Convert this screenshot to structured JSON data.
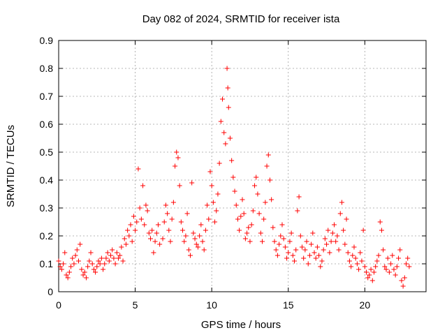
{
  "chart_data": {
    "type": "scatter",
    "title": "Day 082 of 2024, SRMTID for receiver ista",
    "xlabel": "GPS time / hours",
    "ylabel": "SRMTID / TECUs",
    "xlim": [
      0,
      24
    ],
    "ylim": [
      0,
      0.9
    ],
    "xticks": [
      0,
      5,
      10,
      15,
      20
    ],
    "yticks": [
      0,
      0.1,
      0.2,
      0.3,
      0.4,
      0.5,
      0.6,
      0.7,
      0.8,
      0.9
    ],
    "xtick_labels": [
      "0",
      "5",
      "10",
      "15",
      "20"
    ],
    "ytick_labels": [
      "0",
      "0.1",
      "0.2",
      "0.3",
      "0.4",
      "0.5",
      "0.6",
      "0.7",
      "0.8",
      "0.9"
    ],
    "grid": true,
    "marker": "+",
    "color": "#ff0000",
    "series": [
      {
        "name": "SRMTID",
        "points": [
          [
            0.0,
            0.11
          ],
          [
            0.1,
            0.09
          ],
          [
            0.2,
            0.08
          ],
          [
            0.3,
            0.1
          ],
          [
            0.4,
            0.14
          ],
          [
            0.5,
            0.06
          ],
          [
            0.6,
            0.05
          ],
          [
            0.7,
            0.07
          ],
          [
            0.8,
            0.09
          ],
          [
            0.9,
            0.12
          ],
          [
            1.0,
            0.1
          ],
          [
            1.1,
            0.13
          ],
          [
            1.2,
            0.15
          ],
          [
            1.3,
            0.11
          ],
          [
            1.4,
            0.17
          ],
          [
            1.5,
            0.08
          ],
          [
            1.6,
            0.06
          ],
          [
            1.7,
            0.07
          ],
          [
            1.8,
            0.05
          ],
          [
            1.9,
            0.09
          ],
          [
            2.0,
            0.11
          ],
          [
            2.1,
            0.14
          ],
          [
            2.2,
            0.1
          ],
          [
            2.3,
            0.08
          ],
          [
            2.4,
            0.07
          ],
          [
            2.5,
            0.09
          ],
          [
            2.6,
            0.11
          ],
          [
            2.7,
            0.1
          ],
          [
            2.8,
            0.12
          ],
          [
            2.9,
            0.08
          ],
          [
            3.0,
            0.1
          ],
          [
            3.1,
            0.12
          ],
          [
            3.2,
            0.14
          ],
          [
            3.3,
            0.11
          ],
          [
            3.4,
            0.13
          ],
          [
            3.5,
            0.15
          ],
          [
            3.6,
            0.12
          ],
          [
            3.7,
            0.1
          ],
          [
            3.8,
            0.14
          ],
          [
            3.9,
            0.12
          ],
          [
            4.0,
            0.13
          ],
          [
            4.1,
            0.16
          ],
          [
            4.2,
            0.11
          ],
          [
            4.3,
            0.19
          ],
          [
            4.4,
            0.17
          ],
          [
            4.5,
            0.22
          ],
          [
            4.6,
            0.2
          ],
          [
            4.7,
            0.24
          ],
          [
            4.8,
            0.18
          ],
          [
            4.9,
            0.27
          ],
          [
            5.0,
            0.22
          ],
          [
            5.1,
            0.25
          ],
          [
            5.2,
            0.44
          ],
          [
            5.3,
            0.3
          ],
          [
            5.4,
            0.26
          ],
          [
            5.5,
            0.38
          ],
          [
            5.6,
            0.24
          ],
          [
            5.7,
            0.31
          ],
          [
            5.8,
            0.29
          ],
          [
            5.9,
            0.21
          ],
          [
            6.0,
            0.19
          ],
          [
            6.1,
            0.22
          ],
          [
            6.2,
            0.14
          ],
          [
            6.3,
            0.18
          ],
          [
            6.4,
            0.21
          ],
          [
            6.5,
            0.24
          ],
          [
            6.6,
            0.17
          ],
          [
            6.8,
            0.19
          ],
          [
            6.9,
            0.25
          ],
          [
            7.0,
            0.31
          ],
          [
            7.1,
            0.28
          ],
          [
            7.2,
            0.22
          ],
          [
            7.3,
            0.18
          ],
          [
            7.4,
            0.26
          ],
          [
            7.5,
            0.32
          ],
          [
            7.6,
            0.45
          ],
          [
            7.7,
            0.5
          ],
          [
            7.8,
            0.48
          ],
          [
            7.9,
            0.38
          ],
          [
            8.0,
            0.25
          ],
          [
            8.1,
            0.22
          ],
          [
            8.2,
            0.18
          ],
          [
            8.3,
            0.2
          ],
          [
            8.4,
            0.28
          ],
          [
            8.5,
            0.15
          ],
          [
            8.6,
            0.13
          ],
          [
            8.7,
            0.39
          ],
          [
            8.8,
            0.21
          ],
          [
            8.9,
            0.19
          ],
          [
            9.0,
            0.17
          ],
          [
            9.1,
            0.16
          ],
          [
            9.2,
            0.2
          ],
          [
            9.3,
            0.24
          ],
          [
            9.4,
            0.18
          ],
          [
            9.5,
            0.15
          ],
          [
            9.6,
            0.22
          ],
          [
            9.7,
            0.31
          ],
          [
            9.8,
            0.26
          ],
          [
            9.9,
            0.43
          ],
          [
            10.0,
            0.38
          ],
          [
            10.1,
            0.32
          ],
          [
            10.2,
            0.25
          ],
          [
            10.3,
            0.29
          ],
          [
            10.4,
            0.35
          ],
          [
            10.5,
            0.46
          ],
          [
            10.6,
            0.61
          ],
          [
            10.7,
            0.69
          ],
          [
            10.8,
            0.57
          ],
          [
            10.9,
            0.53
          ],
          [
            11.0,
            0.8
          ],
          [
            11.05,
            0.73
          ],
          [
            11.1,
            0.66
          ],
          [
            11.2,
            0.55
          ],
          [
            11.3,
            0.47
          ],
          [
            11.4,
            0.41
          ],
          [
            11.5,
            0.36
          ],
          [
            11.6,
            0.31
          ],
          [
            11.7,
            0.26
          ],
          [
            11.8,
            0.22
          ],
          [
            11.9,
            0.27
          ],
          [
            12.0,
            0.33
          ],
          [
            12.1,
            0.28
          ],
          [
            12.2,
            0.19
          ],
          [
            12.3,
            0.21
          ],
          [
            12.4,
            0.23
          ],
          [
            12.5,
            0.18
          ],
          [
            12.6,
            0.24
          ],
          [
            12.7,
            0.29
          ],
          [
            12.8,
            0.38
          ],
          [
            12.9,
            0.41
          ],
          [
            13.0,
            0.35
          ],
          [
            13.1,
            0.28
          ],
          [
            13.2,
            0.21
          ],
          [
            13.3,
            0.18
          ],
          [
            13.4,
            0.26
          ],
          [
            13.5,
            0.32
          ],
          [
            13.6,
            0.45
          ],
          [
            13.7,
            0.49
          ],
          [
            13.8,
            0.4
          ],
          [
            13.9,
            0.33
          ],
          [
            14.0,
            0.23
          ],
          [
            14.1,
            0.18
          ],
          [
            14.2,
            0.15
          ],
          [
            14.3,
            0.13
          ],
          [
            14.4,
            0.17
          ],
          [
            14.5,
            0.2
          ],
          [
            14.6,
            0.24
          ],
          [
            14.7,
            0.19
          ],
          [
            14.8,
            0.16
          ],
          [
            14.9,
            0.12
          ],
          [
            15.0,
            0.14
          ],
          [
            15.1,
            0.18
          ],
          [
            15.2,
            0.21
          ],
          [
            15.3,
            0.13
          ],
          [
            15.4,
            0.11
          ],
          [
            15.5,
            0.15
          ],
          [
            15.6,
            0.29
          ],
          [
            15.7,
            0.34
          ],
          [
            15.8,
            0.2
          ],
          [
            15.9,
            0.16
          ],
          [
            16.0,
            0.12
          ],
          [
            16.1,
            0.15
          ],
          [
            16.2,
            0.18
          ],
          [
            16.3,
            0.1
          ],
          [
            16.4,
            0.13
          ],
          [
            16.5,
            0.17
          ],
          [
            16.6,
            0.21
          ],
          [
            16.7,
            0.14
          ],
          [
            16.8,
            0.12
          ],
          [
            16.9,
            0.16
          ],
          [
            17.0,
            0.13
          ],
          [
            17.1,
            0.09
          ],
          [
            17.2,
            0.11
          ],
          [
            17.3,
            0.15
          ],
          [
            17.4,
            0.19
          ],
          [
            17.5,
            0.17
          ],
          [
            17.6,
            0.22
          ],
          [
            17.7,
            0.14
          ],
          [
            17.8,
            0.18
          ],
          [
            17.9,
            0.21
          ],
          [
            18.0,
            0.24
          ],
          [
            18.1,
            0.18
          ],
          [
            18.2,
            0.2
          ],
          [
            18.3,
            0.15
          ],
          [
            18.4,
            0.28
          ],
          [
            18.5,
            0.32
          ],
          [
            18.6,
            0.22
          ],
          [
            18.7,
            0.17
          ],
          [
            18.8,
            0.26
          ],
          [
            18.9,
            0.14
          ],
          [
            19.0,
            0.11
          ],
          [
            19.1,
            0.09
          ],
          [
            19.2,
            0.13
          ],
          [
            19.3,
            0.16
          ],
          [
            19.4,
            0.12
          ],
          [
            19.5,
            0.1
          ],
          [
            19.6,
            0.08
          ],
          [
            19.7,
            0.14
          ],
          [
            19.8,
            0.11
          ],
          [
            19.9,
            0.22
          ],
          [
            20.0,
            0.09
          ],
          [
            20.1,
            0.07
          ],
          [
            20.2,
            0.05
          ],
          [
            20.3,
            0.06
          ],
          [
            20.4,
            0.08
          ],
          [
            20.5,
            0.04
          ],
          [
            20.6,
            0.07
          ],
          [
            20.7,
            0.09
          ],
          [
            20.8,
            0.11
          ],
          [
            20.9,
            0.13
          ],
          [
            21.0,
            0.25
          ],
          [
            21.1,
            0.22
          ],
          [
            21.2,
            0.15
          ],
          [
            21.3,
            0.09
          ],
          [
            21.4,
            0.08
          ],
          [
            21.5,
            0.12
          ],
          [
            21.6,
            0.07
          ],
          [
            21.7,
            0.1
          ],
          [
            21.8,
            0.13
          ],
          [
            21.9,
            0.08
          ],
          [
            22.0,
            0.06
          ],
          [
            22.1,
            0.09
          ],
          [
            22.2,
            0.12
          ],
          [
            22.3,
            0.15
          ],
          [
            22.4,
            0.04
          ],
          [
            22.5,
            0.02
          ],
          [
            22.6,
            0.05
          ],
          [
            22.7,
            0.1
          ],
          [
            22.8,
            0.12
          ],
          [
            22.9,
            0.09
          ]
        ]
      }
    ]
  }
}
